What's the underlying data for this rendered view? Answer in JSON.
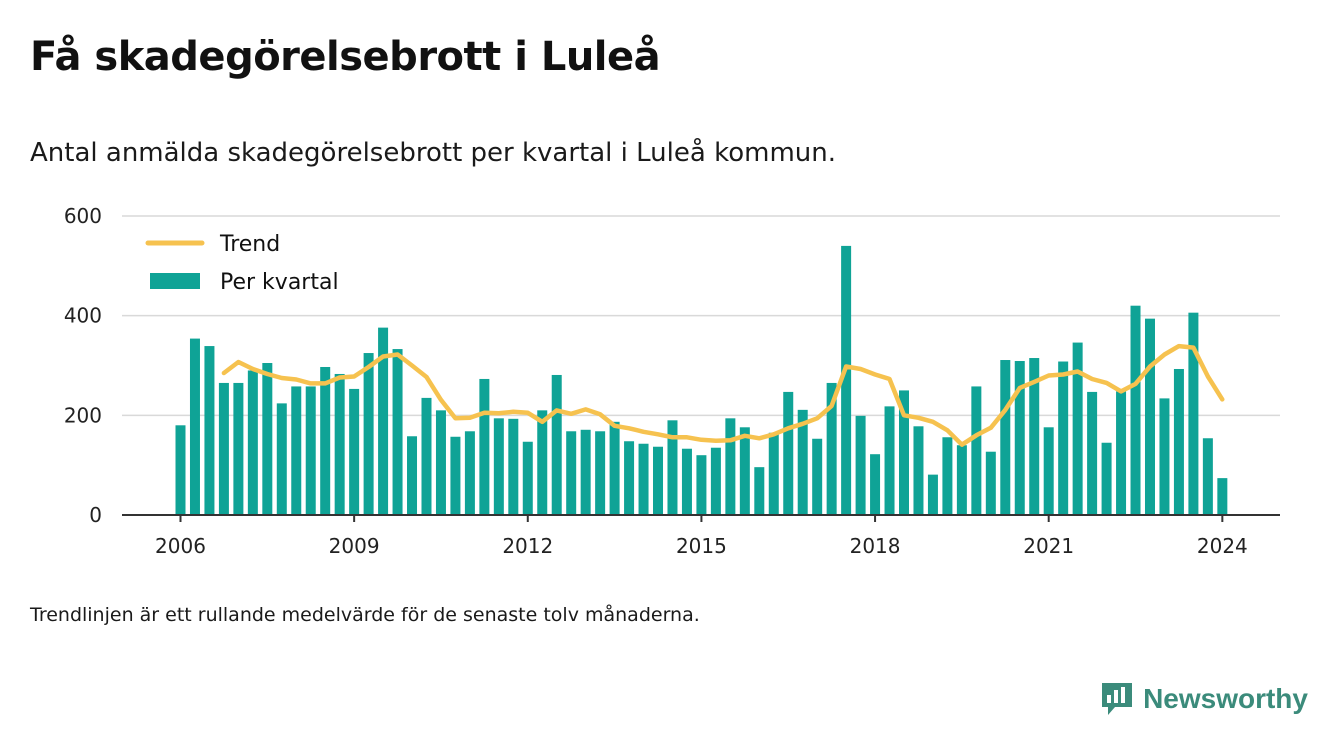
{
  "title": "Få skadegörelsebrott i Luleå",
  "subtitle": "Antal anmälda skadegörelsebrott per kvartal i Luleå kommun.",
  "note": "Trendlinjen är ett rullande medelvärde för de senaste tolv månaderna.",
  "brand": {
    "name": "Newsworthy",
    "color": "#3b8b7b",
    "icon": "newsworthy-logo-icon"
  },
  "colors": {
    "bar": "#0fa396",
    "trend": "#f6c24f",
    "grid": "#d9d9d9",
    "axis": "#333333"
  },
  "chart_data": {
    "type": "bar",
    "title": "",
    "xlabel": "",
    "ylabel": "",
    "x_start": "2006 Q1",
    "ylim": [
      0,
      600
    ],
    "yticks": [
      0,
      200,
      400,
      600
    ],
    "xticks": [
      "2006",
      "2009",
      "2012",
      "2015",
      "2018",
      "2021",
      "2024"
    ],
    "grid": true,
    "legend": {
      "placement": "top-left",
      "entries": [
        "Trend",
        "Per kvartal"
      ]
    },
    "series": [
      {
        "name": "Per kvartal",
        "type": "bar",
        "values": [
          180,
          354,
          339,
          265,
          265,
          290,
          305,
          224,
          258,
          258,
          297,
          283,
          253,
          325,
          376,
          333,
          158,
          235,
          210,
          157,
          168,
          273,
          194,
          193,
          147,
          210,
          281,
          168,
          171,
          168,
          187,
          148,
          143,
          137,
          190,
          133,
          120,
          135,
          194,
          176,
          96,
          165,
          247,
          211,
          153,
          265,
          540,
          199,
          122,
          218,
          250,
          178,
          81,
          156,
          140,
          258,
          127,
          311,
          309,
          315,
          176,
          308,
          346,
          247,
          145,
          248,
          420,
          394,
          234,
          293,
          406,
          154,
          74
        ]
      },
      {
        "name": "Trend",
        "type": "line",
        "values": [
          null,
          null,
          null,
          285,
          307,
          293,
          283,
          275,
          272,
          264,
          264,
          276,
          278,
          297,
          318,
          322,
          300,
          277,
          231,
          194,
          195,
          205,
          204,
          207,
          205,
          187,
          210,
          203,
          212,
          202,
          179,
          174,
          167,
          162,
          156,
          156,
          151,
          149,
          150,
          159,
          154,
          162,
          174,
          183,
          194,
          219,
          298,
          293,
          282,
          273,
          200,
          195,
          187,
          170,
          141,
          160,
          175,
          211,
          255,
          267,
          280,
          282,
          288,
          273,
          265,
          248,
          263,
          298,
          322,
          339,
          336,
          278,
          232
        ]
      }
    ]
  }
}
